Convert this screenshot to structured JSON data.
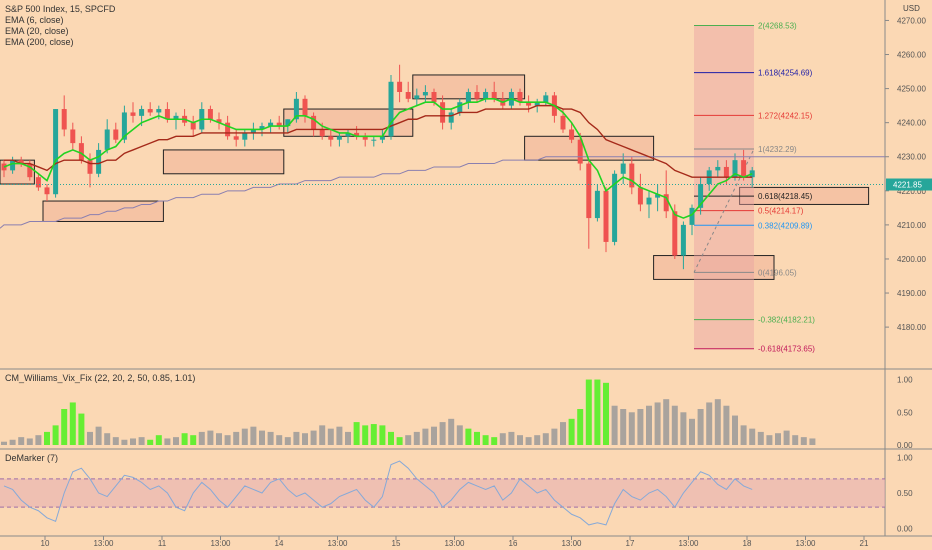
{
  "legend": {
    "symbol": "S&P 500 Index, 15, SPCFD",
    "ema6": "EMA (6, close)",
    "ema20": "EMA (20, close)",
    "ema200": "EMA (200, close)"
  },
  "currency": "USD",
  "last_price": "4221.85",
  "colors": {
    "background": "#fbd8b4",
    "up": "#26a69a",
    "down": "#ef5350",
    "ema6": "#22d322",
    "ema20": "#a52a1a",
    "ema200": "#8a7fb0",
    "vix_normal": "#a9a39d",
    "vix_high": "#66ee33",
    "demarker": "#86a9d8"
  },
  "chart_data": [
    {
      "type": "candlestick",
      "name": "price",
      "ylim": [
        4168,
        4276
      ],
      "y_ticks": [
        4180,
        4190,
        4200,
        4210,
        4220,
        4230,
        4240,
        4250,
        4260,
        4270
      ],
      "x_ticks": [
        "10",
        "13:00",
        "11",
        "13:00",
        "14",
        "13:00",
        "15",
        "13:00",
        "16",
        "13:00",
        "17",
        "13:00",
        "18",
        "13:00",
        "21"
      ],
      "ohlc": [
        [
          4228,
          4229,
          4224,
          4226
        ],
        [
          4226,
          4230,
          4225,
          4229
        ],
        [
          4229,
          4230,
          4227,
          4228
        ],
        [
          4228,
          4229,
          4223,
          4224
        ],
        [
          4224,
          4225,
          4220,
          4221
        ],
        [
          4221,
          4222,
          4217,
          4219
        ],
        [
          4219,
          4244,
          4218,
          4244
        ],
        [
          4244,
          4248,
          4236,
          4238
        ],
        [
          4238,
          4240,
          4232,
          4234
        ],
        [
          4234,
          4236,
          4228,
          4229
        ],
        [
          4229,
          4231,
          4221,
          4225
        ],
        [
          4225,
          4234,
          4224,
          4232
        ],
        [
          4232,
          4241,
          4231,
          4238
        ],
        [
          4238,
          4240,
          4234,
          4235
        ],
        [
          4235,
          4245,
          4234,
          4243
        ],
        [
          4243,
          4246,
          4240,
          4242
        ],
        [
          4242,
          4245,
          4239,
          4244
        ],
        [
          4244,
          4246,
          4242,
          4243
        ],
        [
          4243,
          4245,
          4241,
          4244
        ],
        [
          4244,
          4246,
          4240,
          4241
        ],
        [
          4241,
          4243,
          4238,
          4242
        ],
        [
          4242,
          4244,
          4239,
          4240
        ],
        [
          4240,
          4242,
          4236,
          4238
        ],
        [
          4238,
          4246,
          4237,
          4244
        ],
        [
          4244,
          4245,
          4240,
          4241
        ],
        [
          4241,
          4243,
          4238,
          4240
        ],
        [
          4240,
          4242,
          4235,
          4236
        ],
        [
          4236,
          4238,
          4233,
          4235
        ],
        [
          4235,
          4238,
          4233,
          4237
        ],
        [
          4237,
          4240,
          4235,
          4238
        ],
        [
          4238,
          4240,
          4236,
          4239
        ],
        [
          4239,
          4241,
          4237,
          4240
        ],
        [
          4240,
          4242,
          4238,
          4239
        ],
        [
          4239,
          4241,
          4237,
          4241
        ],
        [
          4241,
          4249,
          4240,
          4247
        ],
        [
          4247,
          4248,
          4240,
          4242
        ],
        [
          4242,
          4243,
          4236,
          4238
        ],
        [
          4238,
          4240,
          4235,
          4236
        ],
        [
          4236,
          4238,
          4233,
          4235
        ],
        [
          4235,
          4237,
          4233,
          4236
        ],
        [
          4236,
          4238,
          4234,
          4237
        ],
        [
          4237,
          4239,
          4235,
          4236
        ],
        [
          4236,
          4237,
          4233,
          4235
        ],
        [
          4235,
          4236,
          4233,
          4235
        ],
        [
          4235,
          4238,
          4234,
          4236
        ],
        [
          4236,
          4254,
          4235,
          4252
        ],
        [
          4252,
          4257,
          4246,
          4249
        ],
        [
          4249,
          4252,
          4246,
          4247
        ],
        [
          4247,
          4250,
          4245,
          4248
        ],
        [
          4248,
          4251,
          4246,
          4249
        ],
        [
          4249,
          4250,
          4245,
          4246
        ],
        [
          4246,
          4248,
          4238,
          4240
        ],
        [
          4240,
          4244,
          4238,
          4243
        ],
        [
          4243,
          4247,
          4242,
          4246
        ],
        [
          4246,
          4250,
          4244,
          4249
        ],
        [
          4249,
          4251,
          4246,
          4247
        ],
        [
          4247,
          4250,
          4246,
          4249
        ],
        [
          4249,
          4252,
          4246,
          4247
        ],
        [
          4247,
          4249,
          4244,
          4245
        ],
        [
          4245,
          4250,
          4244,
          4249
        ],
        [
          4249,
          4250,
          4245,
          4246
        ],
        [
          4246,
          4248,
          4243,
          4245
        ],
        [
          4245,
          4247,
          4243,
          4246
        ],
        [
          4246,
          4249,
          4245,
          4248
        ],
        [
          4248,
          4249,
          4240,
          4242
        ],
        [
          4242,
          4244,
          4237,
          4238
        ],
        [
          4238,
          4240,
          4234,
          4235
        ],
        [
          4235,
          4237,
          4226,
          4228
        ],
        [
          4228,
          4229,
          4203,
          4212
        ],
        [
          4212,
          4222,
          4211,
          4220
        ],
        [
          4220,
          4221,
          4202,
          4205
        ],
        [
          4205,
          4226,
          4204,
          4225
        ],
        [
          4225,
          4231,
          4222,
          4228
        ],
        [
          4228,
          4230,
          4219,
          4221
        ],
        [
          4221,
          4225,
          4214,
          4216
        ],
        [
          4216,
          4220,
          4212,
          4218
        ],
        [
          4218,
          4222,
          4214,
          4219
        ],
        [
          4219,
          4226,
          4212,
          4214
        ],
        [
          4214,
          4216,
          4200,
          4201
        ],
        [
          4201,
          4211,
          4197,
          4210
        ],
        [
          4210,
          4216,
          4207,
          4215
        ],
        [
          4215,
          4224,
          4213,
          4222
        ],
        [
          4222,
          4227,
          4220,
          4226
        ],
        [
          4226,
          4229,
          4224,
          4227
        ],
        [
          4227,
          4229,
          4222,
          4224
        ],
        [
          4224,
          4231,
          4223,
          4229
        ],
        [
          4229,
          4232,
          4223,
          4224
        ],
        [
          4224,
          4227,
          4221,
          4226
        ]
      ],
      "ema6": [
        4227,
        4228,
        4228,
        4227,
        4225,
        4223,
        4229,
        4231,
        4232,
        4231,
        4229,
        4230,
        4232,
        4233,
        4236,
        4238,
        4240,
        4241,
        4242,
        4241,
        4241,
        4241,
        4240,
        4241,
        4241,
        4240,
        4239,
        4238,
        4238,
        4238,
        4238,
        4239,
        4239,
        4239,
        4242,
        4242,
        4241,
        4239,
        4238,
        4237,
        4237,
        4236,
        4236,
        4236,
        4236,
        4240,
        4243,
        4244,
        4245,
        4246,
        4246,
        4244,
        4244,
        4245,
        4246,
        4246,
        4247,
        4247,
        4246,
        4247,
        4246,
        4246,
        4246,
        4246,
        4245,
        4243,
        4240,
        4236,
        4229,
        4226,
        4220,
        4222,
        4224,
        4223,
        4221,
        4220,
        4219,
        4218,
        4213,
        4212,
        4213,
        4216,
        4219,
        4222,
        4223,
        4225,
        4224,
        4225
      ],
      "ema20": [
        4229,
        4229,
        4228,
        4228,
        4227,
        4226,
        4228,
        4229,
        4229,
        4229,
        4228,
        4228,
        4229,
        4229,
        4231,
        4232,
        4233,
        4234,
        4235,
        4235,
        4236,
        4236,
        4236,
        4237,
        4237,
        4237,
        4237,
        4237,
        4237,
        4237,
        4237,
        4237,
        4237,
        4237,
        4238,
        4238,
        4238,
        4238,
        4238,
        4238,
        4238,
        4238,
        4238,
        4238,
        4238,
        4239,
        4240,
        4241,
        4241,
        4242,
        4242,
        4242,
        4242,
        4243,
        4243,
        4243,
        4244,
        4244,
        4244,
        4244,
        4244,
        4244,
        4245,
        4245,
        4245,
        4244,
        4244,
        4243,
        4240,
        4238,
        4235,
        4234,
        4233,
        4232,
        4231,
        4230,
        4229,
        4228,
        4226,
        4225,
        4224,
        4224,
        4224,
        4224,
        4224,
        4224,
        4224,
        4224
      ],
      "ema200": [
        4210,
        4210,
        4210,
        4211,
        4211,
        4211,
        4211,
        4212,
        4212,
        4212,
        4213,
        4213,
        4214,
        4214,
        4215,
        4215,
        4216,
        4216,
        4217,
        4217,
        4218,
        4218,
        4218,
        4219,
        4219,
        4219,
        4220,
        4220,
        4220,
        4221,
        4221,
        4221,
        4222,
        4222,
        4222,
        4223,
        4223,
        4223,
        4223,
        4224,
        4224,
        4224,
        4224,
        4224,
        4225,
        4225,
        4225,
        4226,
        4226,
        4226,
        4227,
        4227,
        4227,
        4227,
        4228,
        4228,
        4228,
        4228,
        4229,
        4229,
        4229,
        4229,
        4229,
        4230,
        4230,
        4230,
        4230,
        4230,
        4230,
        4230,
        4230,
        4230,
        4230,
        4230,
        4230,
        4230,
        4230,
        4230,
        4230,
        4230,
        4230,
        4230,
        4230,
        4230,
        4230,
        4230,
        4230,
        4230
      ],
      "fib_levels": [
        {
          "ratio": "2",
          "price": "4268.53",
          "label": "2(4268.53)",
          "color": "#4caf50"
        },
        {
          "ratio": "1.618",
          "price": "4254.69",
          "label": "1.618(4254.69)",
          "color": "#1e1ea8"
        },
        {
          "ratio": "1.272",
          "price": "4242.15",
          "label": "1.272(4242.15)",
          "color": "#e53935"
        },
        {
          "ratio": "1",
          "price": "4232.29",
          "label": "1(4232.29)",
          "color": "#888888"
        },
        {
          "ratio": "0.618",
          "price": "4218.45",
          "label": "0.618(4218.45)",
          "color": "#222222"
        },
        {
          "ratio": "0.5",
          "price": "4214.17",
          "label": "0.5(4214.17)",
          "color": "#e53935"
        },
        {
          "ratio": "0.382",
          "price": "4209.89",
          "label": "0.382(4209.89)",
          "color": "#2196f3"
        },
        {
          "ratio": "0",
          "price": "4196.05",
          "label": "0(4196.05)",
          "color": "#888888"
        },
        {
          "ratio": "-0.382",
          "price": "4182.21",
          "label": "-0.382(4182.21)",
          "color": "#4caf50"
        },
        {
          "ratio": "-0.618",
          "price": "4173.65",
          "label": "-0.618(4173.65)",
          "color": "#c2185b"
        }
      ],
      "zones": [
        {
          "from": 0,
          "to": 4,
          "low": 4222,
          "high": 4229
        },
        {
          "from": 5,
          "to": 19,
          "low": 4211,
          "high": 4217
        },
        {
          "from": 19,
          "to": 33,
          "low": 4225,
          "high": 4232
        },
        {
          "from": 33,
          "to": 48,
          "low": 4236,
          "high": 4244
        },
        {
          "from": 48,
          "to": 61,
          "low": 4247,
          "high": 4254
        },
        {
          "from": 61,
          "to": 76,
          "low": 4229,
          "high": 4236
        },
        {
          "from": 76,
          "to": 90,
          "low": 4194,
          "high": 4201
        },
        {
          "from": 86,
          "to": 101,
          "low": 4216,
          "high": 4221
        }
      ]
    },
    {
      "type": "bar",
      "name": "CM_Williams_Vix_Fix",
      "title": "CM_Williams_Vix_Fix (22, 20, 2, 50, 0.85, 1.01)",
      "ylim": [
        0,
        1.1
      ],
      "y_ticks": [
        "0.00",
        "0.50",
        "1.00"
      ],
      "values": [
        0.05,
        0.08,
        0.12,
        0.1,
        0.15,
        0.2,
        0.3,
        0.55,
        0.65,
        0.48,
        0.2,
        0.28,
        0.18,
        0.12,
        0.08,
        0.1,
        0.12,
        0.08,
        0.15,
        0.1,
        0.12,
        0.18,
        0.15,
        0.2,
        0.22,
        0.18,
        0.15,
        0.2,
        0.25,
        0.28,
        0.22,
        0.2,
        0.15,
        0.12,
        0.2,
        0.18,
        0.22,
        0.3,
        0.25,
        0.28,
        0.2,
        0.35,
        0.3,
        0.32,
        0.3,
        0.2,
        0.12,
        0.15,
        0.2,
        0.25,
        0.28,
        0.35,
        0.4,
        0.3,
        0.25,
        0.2,
        0.15,
        0.12,
        0.18,
        0.2,
        0.15,
        0.12,
        0.15,
        0.18,
        0.25,
        0.35,
        0.4,
        0.55,
        1.0,
        1.0,
        0.95,
        0.6,
        0.55,
        0.5,
        0.55,
        0.6,
        0.65,
        0.7,
        0.6,
        0.5,
        0.4,
        0.55,
        0.65,
        0.7,
        0.6,
        0.45,
        0.3,
        0.25,
        0.2,
        0.15,
        0.18,
        0.22,
        0.15,
        0.12,
        0.1
      ],
      "highlighted": [
        5,
        6,
        7,
        8,
        9,
        17,
        18,
        21,
        22,
        41,
        42,
        43,
        44,
        45,
        46,
        54,
        55,
        56,
        57,
        66,
        67,
        68,
        69,
        70
      ]
    },
    {
      "type": "line",
      "name": "DeMarker",
      "title": "DeMarker (7)",
      "ylim": [
        -0.05,
        1.05
      ],
      "y_ticks": [
        "0.00",
        "0.50",
        "1.00"
      ],
      "band": [
        0.3,
        0.7
      ],
      "values": [
        0.6,
        0.55,
        0.4,
        0.3,
        0.25,
        0.15,
        0.1,
        0.5,
        0.8,
        0.85,
        0.7,
        0.5,
        0.45,
        0.6,
        0.75,
        0.72,
        0.65,
        0.55,
        0.6,
        0.5,
        0.3,
        0.25,
        0.5,
        0.65,
        0.55,
        0.4,
        0.3,
        0.45,
        0.6,
        0.55,
        0.5,
        0.65,
        0.7,
        0.55,
        0.45,
        0.5,
        0.4,
        0.3,
        0.35,
        0.45,
        0.5,
        0.55,
        0.4,
        0.3,
        0.45,
        0.9,
        0.95,
        0.85,
        0.7,
        0.6,
        0.5,
        0.3,
        0.4,
        0.55,
        0.65,
        0.6,
        0.55,
        0.6,
        0.4,
        0.5,
        0.7,
        0.6,
        0.5,
        0.55,
        0.4,
        0.3,
        0.2,
        0.15,
        0.05,
        0.08,
        0.05,
        0.35,
        0.55,
        0.45,
        0.4,
        0.5,
        0.55,
        0.45,
        0.3,
        0.5,
        0.65,
        0.8,
        0.75,
        0.62,
        0.55,
        0.7,
        0.6,
        0.55
      ]
    }
  ]
}
